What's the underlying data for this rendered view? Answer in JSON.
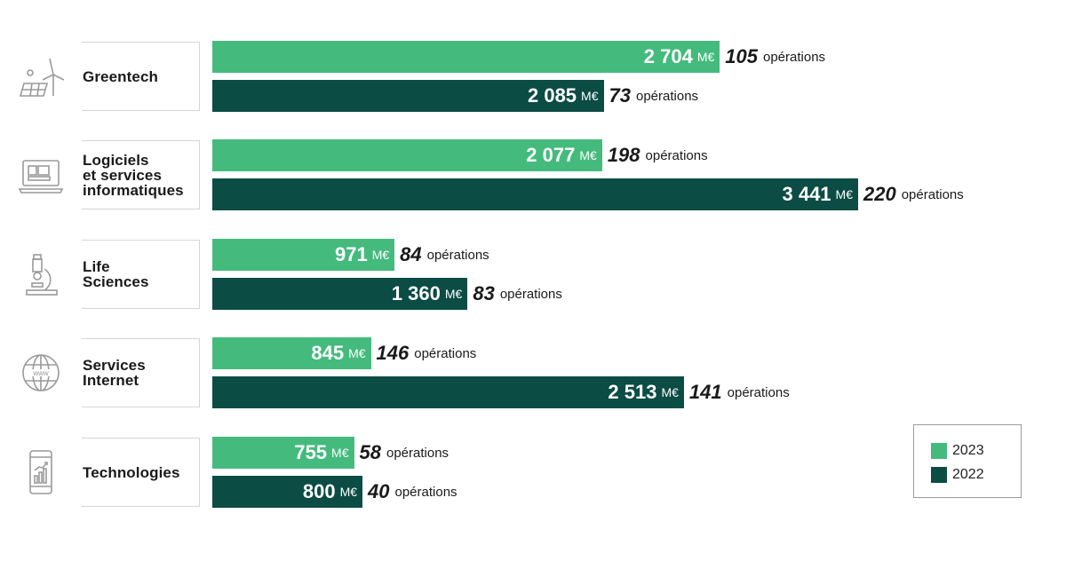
{
  "chart_data": {
    "type": "bar",
    "orientation": "horizontal",
    "categories": [
      "Greentech",
      "Logiciels\net services\ninformatiques",
      "Life\nSciences",
      "Services\nInternet",
      "Technologies"
    ],
    "unit": "M€",
    "ops_word": "opérations",
    "series": [
      {
        "name": "2023",
        "color": "#44bb7d",
        "values": [
          2704,
          2077,
          971,
          845,
          755
        ],
        "values_text": [
          "2 704",
          "2 077",
          "971",
          "845",
          "755"
        ],
        "operations": [
          105,
          198,
          84,
          146,
          58
        ]
      },
      {
        "name": "2022",
        "color": "#0b4c45",
        "values": [
          2085,
          3441,
          1360,
          2513,
          800
        ],
        "values_text": [
          "2 085",
          "3 441",
          "1 360",
          "2 513",
          "800"
        ],
        "operations": [
          73,
          220,
          83,
          141,
          40
        ]
      }
    ],
    "icons": [
      "wind-solar-icon",
      "laptop-icon",
      "microscope-icon",
      "globe-www-icon",
      "smartphone-chart-icon"
    ],
    "legend": {
      "position": "bottom-right"
    },
    "grid": false
  }
}
